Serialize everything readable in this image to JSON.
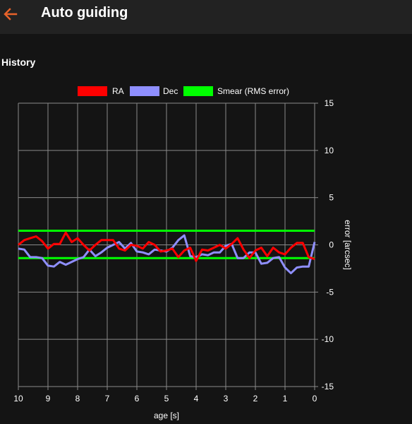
{
  "header": {
    "title": "Auto guiding",
    "back_icon": "arrow-left-icon",
    "accent": "#e8622a"
  },
  "section": {
    "title": "History"
  },
  "chart_data": {
    "type": "line",
    "title": "",
    "xlabel": "age [s]",
    "ylabel": "error [arcsec]",
    "xlim": [
      10,
      0
    ],
    "ylim": [
      -15,
      15
    ],
    "x_ticks": [
      10,
      9,
      8,
      7,
      6,
      5,
      4,
      3,
      2,
      1,
      0
    ],
    "y_ticks": [
      15,
      10,
      5,
      0,
      -5,
      -10,
      -15
    ],
    "grid": true,
    "legend_position": "top",
    "x": [
      10,
      9.8,
      9.6,
      9.4,
      9.2,
      9,
      8.8,
      8.6,
      8.4,
      8.2,
      8,
      7.8,
      7.6,
      7.4,
      7.2,
      7,
      6.8,
      6.6,
      6.4,
      6.2,
      6,
      5.8,
      5.6,
      5.4,
      5.2,
      5,
      4.8,
      4.6,
      4.4,
      4.2,
      4,
      3.8,
      3.6,
      3.4,
      3.2,
      3,
      2.8,
      2.6,
      2.4,
      2.2,
      2,
      1.8,
      1.6,
      1.4,
      1.2,
      1,
      0.8,
      0.6,
      0.4,
      0.2,
      0
    ],
    "series": [
      {
        "name": "RA",
        "color": "#ff0000",
        "values": [
          0,
          0.5,
          0.7,
          0.9,
          0.4,
          -0.4,
          0.1,
          0.1,
          1.3,
          0.3,
          0.7,
          0,
          -0.6,
          0,
          0.5,
          0.5,
          0.5,
          -0.4,
          -0.6,
          0,
          -0.1,
          -0.4,
          0.3,
          0,
          -0.7,
          -0.6,
          -0.4,
          -1.3,
          -0.6,
          -0.3,
          -1.7,
          -0.5,
          -0.6,
          -0.3,
          0,
          -0.4,
          0.1,
          0.7,
          -0.5,
          -1.4,
          -0.6,
          -0.3,
          -1.2,
          -0.3,
          -0.8,
          -1,
          -0.3,
          0.2,
          0.2,
          -1.3,
          -1.5
        ]
      },
      {
        "name": "Dec",
        "color": "#8f8fff",
        "values": [
          -0.4,
          -0.5,
          -1.3,
          -1.3,
          -1.4,
          -2.2,
          -2.3,
          -1.8,
          -2.1,
          -1.8,
          -1.5,
          -1.3,
          -0.5,
          -1.2,
          -0.8,
          -0.3,
          0,
          0.3,
          -0.4,
          0.2,
          -0.7,
          -0.8,
          -1,
          -0.5,
          -0.6,
          -0.7,
          -0.3,
          0.5,
          1,
          -1.2,
          -1.3,
          -1,
          -1.1,
          -0.8,
          -0.8,
          -0.1,
          0.1,
          -1.4,
          -1.4,
          -0.8,
          -0.8,
          -2,
          -1.9,
          -1.4,
          -1.3,
          -2.4,
          -3,
          -2.4,
          -2.3,
          -2.3,
          0.3
        ]
      },
      {
        "name": "Smear (RMS error)",
        "color": "#00ff00",
        "values_upper": [
          1.5,
          1.5
        ],
        "values_lower": [
          -1.4,
          -1.4
        ]
      }
    ]
  }
}
